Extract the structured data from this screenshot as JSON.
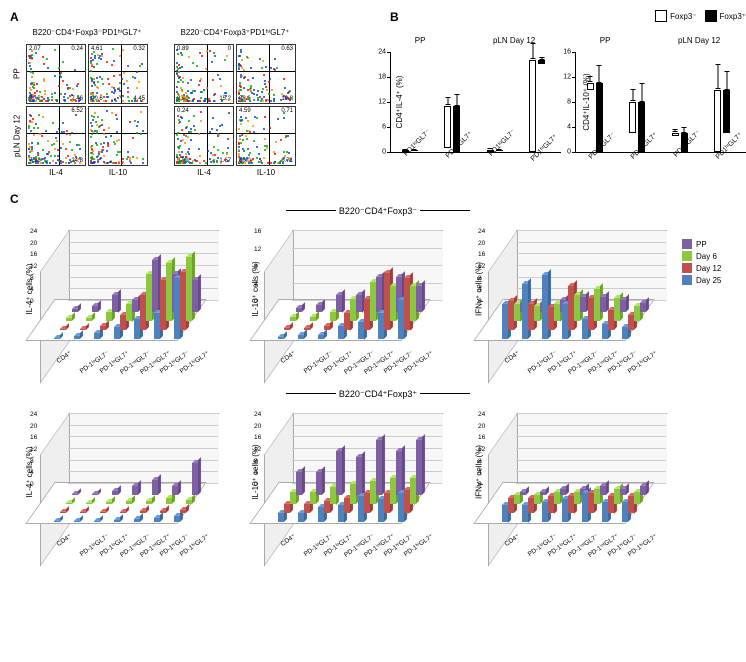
{
  "panelA": {
    "label": "A",
    "halves": [
      {
        "title": "B220⁻CD4⁺Foxp3⁻PD1ʰⁱGL7⁺",
        "yaxis": "IL-17",
        "xaxis_left": "IL-4",
        "xaxis_right": "IL-10",
        "rows": [
          {
            "row_label": "PP",
            "plots": [
              {
                "tl": "2.07",
                "tr": "0.24",
                "bl": "90.2",
                "br": "7.46",
                "xaxis": "IFNγ"
              },
              {
                "tl": "4.61",
                "tr": "0.32",
                "bl": "90.6",
                "br": "4.45",
                "xaxis": "IFNγ"
              }
            ]
          },
          {
            "row_label": "pLN Day 12",
            "plots": [
              {
                "tl": "",
                "tr": "6.52",
                "bl": "75.2",
                "br": "24.8",
                "xaxis": "IL-4"
              },
              {
                "tl": "",
                "tr": "",
                "bl": "",
                "br": "",
                "xaxis": "IL-10"
              }
            ]
          }
        ],
        "plot_grid": [
          [
            "2.07",
            "0.24",
            "90.2",
            "7.46"
          ],
          [
            "4.61",
            "0.32",
            "90.6",
            "4.45"
          ],
          [
            "",
            "6.52",
            "75.2",
            "24.8"
          ],
          [
            "",
            "",
            "",
            ""
          ]
        ]
      },
      {
        "title": "B220⁻CD4⁺Foxp3⁺PD1ʰⁱGL7⁺",
        "yaxis": "IL-17",
        "xaxis_left": "IL-4",
        "xaxis_right": "IL-10",
        "plot_grid": [
          [
            "0.89",
            "0",
            "83.9",
            "15.2"
          ],
          [
            "",
            "0.63",
            "88.6",
            "10.8"
          ],
          [
            "0.24",
            "",
            "97.9",
            "1.67"
          ],
          [
            "4.59",
            "0.71",
            "88.0",
            "6.71"
          ]
        ]
      }
    ],
    "row_labels": [
      "PP",
      "pLN Day 12"
    ],
    "ifn_label": "IFNγ"
  },
  "panelB": {
    "label": "B",
    "legend": {
      "neg": "Foxp3⁻",
      "pos": "Foxp3⁺"
    },
    "group_labels": [
      "PP",
      "pLN Day 12"
    ],
    "x_categories": [
      "PD1ˡᵒGL7⁻",
      "PD1ʰⁱGL7⁺",
      "PD1ˡᵒGL7⁻",
      "PD1ʰⁱGL7⁺"
    ],
    "charts": [
      {
        "ylab": "CD4⁺IL-4⁺ (%)",
        "ymax": 24,
        "ytick_step": 6,
        "series": [
          {
            "foxp3n": 0.3,
            "foxp3p": 0.2,
            "n_err": 0.3,
            "p_err": 0.3
          },
          {
            "foxp3n": 10,
            "foxp3p": 11,
            "n_err": 2,
            "p_err": 3
          },
          {
            "foxp3n": 0.4,
            "foxp3p": 0.3,
            "n_err": 0.3,
            "p_err": 0.3
          },
          {
            "foxp3n": 22,
            "foxp3p": 0.8,
            "n_err": 4,
            "p_err": 0.7
          }
        ]
      },
      {
        "ylab": "CD4⁺IL-10⁺ (%)",
        "ymax": 16,
        "ytick_step": 4,
        "series": [
          {
            "foxp3n": 1,
            "foxp3p": 11,
            "n_err": 1,
            "p_err": 3
          },
          {
            "foxp3n": 5,
            "foxp3p": 8,
            "n_err": 2,
            "p_err": 3
          },
          {
            "foxp3n": 0.5,
            "foxp3p": 3,
            "n_err": 0.5,
            "p_err": 1
          },
          {
            "foxp3n": 10,
            "foxp3p": 7,
            "n_err": 4,
            "p_err": 3
          }
        ]
      }
    ]
  },
  "panelC": {
    "label": "C",
    "titles": {
      "top": "B220⁻CD4⁺Foxp3⁻",
      "bottom": "B220⁻CD4⁺Foxp3⁺"
    },
    "x_categories": [
      "CD4⁺",
      "PD-1ˡᵒGL7⁻",
      "PD-1ˡᵒGL7⁺",
      "PD-1ⁱⁿᵗGL7⁻",
      "PD-1ⁱⁿᵗGL7⁺",
      "PD-1ʰⁱGL7⁻",
      "PD-1ʰⁱGL7⁺"
    ],
    "legend": [
      {
        "label": "PP",
        "color": "#7e5fa3"
      },
      {
        "label": "Day 6",
        "color": "#8dc63f"
      },
      {
        "label": "Day 12",
        "color": "#c0504d"
      },
      {
        "label": "Day 25",
        "color": "#4f81bd"
      }
    ],
    "rows": [
      {
        "charts": [
          {
            "ylab": "IL-4⁺ cells (%)",
            "ymax": 24,
            "ystep": 4,
            "bars": [
              [
                1,
                1,
                0.5,
                0.5
              ],
              [
                2,
                1,
                0.5,
                1
              ],
              [
                6,
                3,
                1.5,
                2
              ],
              [
                4,
                6,
                5,
                4
              ],
              [
                18,
                16,
                12,
                7
              ],
              [
                13,
                20,
                17,
                9
              ],
              [
                11,
                22,
                20,
                21
              ]
            ]
          },
          {
            "ylab": "IL-10⁺ cells (%)",
            "ymax": 16,
            "ystep": 4,
            "bars": [
              [
                1,
                1,
                0.5,
                0.5
              ],
              [
                1.5,
                1,
                0.5,
                1
              ],
              [
                4,
                2,
                1,
                1
              ],
              [
                4,
                5,
                4,
                3
              ],
              [
                8,
                9,
                7,
                4
              ],
              [
                8,
                8,
                13,
                6
              ],
              [
                6,
                8,
                12,
                9
              ]
            ]
          },
          {
            "ylab": "IFNγ⁺ cells (%)",
            "ymax": 24,
            "ystep": 4,
            "bars": [
              [
                3,
                6,
                10,
                12
              ],
              [
                3,
                5,
                9,
                19
              ],
              [
                4,
                6,
                8,
                22
              ],
              [
                5,
                9,
                15,
                12
              ],
              [
                5,
                11,
                11,
                7
              ],
              [
                4,
                8,
                7,
                5
              ],
              [
                3,
                5,
                5,
                4
              ]
            ]
          }
        ]
      },
      {
        "charts": [
          {
            "ylab": "IL-4⁺ cells (%)",
            "ymax": 24,
            "ystep": 4,
            "bars": [
              [
                0.5,
                0.5,
                0.3,
                0.3
              ],
              [
                0.5,
                0.5,
                0.3,
                0.4
              ],
              [
                1.5,
                0.8,
                0.5,
                0.5
              ],
              [
                3,
                1,
                0.5,
                0.8
              ],
              [
                5,
                1,
                0.6,
                1
              ],
              [
                3,
                2,
                0.8,
                1.5
              ],
              [
                11,
                1.5,
                1,
                2
              ]
            ]
          },
          {
            "ylab": "IL-10⁺ cells (%)",
            "ymax": 24,
            "ystep": 4,
            "bars": [
              [
                8,
                4,
                3,
                3
              ],
              [
                8,
                4,
                3,
                3
              ],
              [
                15,
                6,
                4,
                5
              ],
              [
                13,
                7,
                5,
                6
              ],
              [
                19,
                8,
                7,
                9
              ],
              [
                15,
                9,
                7,
                8
              ],
              [
                19,
                9,
                8,
                10
              ]
            ]
          },
          {
            "ylab": "IFNγ⁺ cells (%)",
            "ymax": 24,
            "ystep": 4,
            "bars": [
              [
                1,
                3,
                5,
                6
              ],
              [
                1,
                3,
                5,
                6
              ],
              [
                2,
                4,
                6,
                7
              ],
              [
                2,
                4,
                6,
                8
              ],
              [
                3,
                5,
                7,
                10
              ],
              [
                2,
                5,
                6,
                7
              ],
              [
                3,
                4,
                6,
                7
              ]
            ]
          }
        ]
      }
    ]
  }
}
